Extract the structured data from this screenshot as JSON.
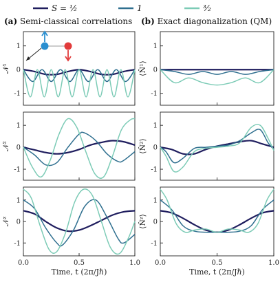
{
  "legend": {
    "items": [
      {
        "label": "S = ½",
        "color": "#1f1d5e"
      },
      {
        "label": "1",
        "color": "#2f6f8f"
      },
      {
        "label": "³⁄₂",
        "color": "#7ccbb6"
      }
    ]
  },
  "panels_titles": {
    "left": {
      "tag": "(a)",
      "text": "Semi-classical correlations"
    },
    "right": {
      "tag": "(b)",
      "text": "Exact diagonalization (QM)"
    }
  },
  "xaxis": {
    "label": "Time, t (2π/Jℏ)",
    "ticks": [
      "0.0",
      "0.5",
      "1.0"
    ]
  },
  "chart_data": [
    {
      "type": "line",
      "panel": "a1",
      "ylabel": "𝒩¹",
      "ylim": [
        -1.5,
        1.6
      ],
      "yticks": [
        -1,
        0,
        1
      ],
      "xlim": [
        0,
        1
      ],
      "series": [
        {
          "name": "S = ½",
          "color": "#1f1d5e",
          "x": [
            0,
            0.1,
            0.2,
            0.3,
            0.4,
            0.5,
            0.6,
            0.7,
            0.8,
            0.9,
            1.0
          ],
          "y": [
            0,
            -0.08,
            -0.2,
            -0.2,
            -0.08,
            0,
            -0.08,
            -0.2,
            -0.2,
            -0.08,
            0
          ]
        },
        {
          "name": "1",
          "color": "#2f6f8f",
          "x": [
            0,
            0.083,
            0.167,
            0.25,
            0.333,
            0.417,
            0.5,
            0.583,
            0.667,
            0.75,
            0.833,
            0.917,
            1.0
          ],
          "y": [
            0,
            -0.5,
            0,
            -0.5,
            0,
            -0.5,
            0,
            -0.5,
            0,
            -0.5,
            0,
            -0.5,
            0
          ]
        },
        {
          "name": "³⁄₂",
          "color": "#7ccbb6",
          "x": [
            0,
            0.0625,
            0.125,
            0.1875,
            0.25,
            0.3125,
            0.375,
            0.4375,
            0.5,
            0.5625,
            0.625,
            0.6875,
            0.75,
            0.8125,
            0.875,
            0.9375,
            1.0
          ],
          "y": [
            0,
            -1.15,
            0,
            -1.15,
            0,
            -1.15,
            0,
            -1.15,
            0,
            -1.15,
            0,
            -1.15,
            0,
            -1.15,
            0,
            -1.15,
            0
          ]
        }
      ]
    },
    {
      "type": "line",
      "panel": "b1",
      "ylabel": "⟨N̂¹⟩",
      "ylim": [
        -1.5,
        1.6
      ],
      "yticks": [
        -1,
        0,
        1
      ],
      "xlim": [
        0,
        1
      ],
      "series": [
        {
          "name": "S = ½",
          "color": "#1f1d5e",
          "x": [
            0,
            1
          ],
          "y": [
            0,
            0
          ]
        },
        {
          "name": "1",
          "color": "#2f6f8f",
          "x": [
            0,
            0.125,
            0.25,
            0.375,
            0.5,
            0.625,
            0.75,
            0.875,
            1.0
          ],
          "y": [
            0,
            -0.08,
            -0.2,
            -0.08,
            -0.2,
            -0.08,
            -0.2,
            -0.08,
            0
          ]
        },
        {
          "name": "³⁄₂",
          "color": "#7ccbb6",
          "x": [
            0,
            0.125,
            0.25,
            0.375,
            0.5,
            0.625,
            0.75,
            0.875,
            1.0
          ],
          "y": [
            0,
            -0.55,
            -0.35,
            -0.55,
            -0.65,
            -0.55,
            -0.35,
            -0.55,
            0
          ]
        }
      ]
    },
    {
      "type": "line",
      "panel": "a2",
      "ylabel": "𝒩²",
      "ylim": [
        -1.5,
        1.6
      ],
      "yticks": [
        -1,
        0,
        1
      ],
      "xlim": [
        0,
        1
      ],
      "series": [
        {
          "name": "S = ½",
          "color": "#1f1d5e",
          "x": [
            0,
            0.1,
            0.2,
            0.3,
            0.4,
            0.5,
            0.6,
            0.7,
            0.8,
            0.9,
            1.0
          ],
          "y": [
            0,
            -0.12,
            -0.24,
            -0.3,
            -0.24,
            -0.1,
            0.1,
            0.22,
            0.3,
            0.25,
            0.1
          ]
        },
        {
          "name": "1",
          "color": "#2f6f8f",
          "x": [
            0,
            0.1,
            0.2,
            0.3,
            0.4,
            0.5,
            0.55,
            0.65,
            0.75,
            0.85,
            0.9,
            1.0
          ],
          "y": [
            0,
            -0.35,
            -0.8,
            -0.7,
            0.0,
            0.6,
            0.65,
            0.3,
            -0.3,
            -0.65,
            -0.6,
            -0.2
          ]
        },
        {
          "name": "³⁄₂",
          "color": "#7ccbb6",
          "x": [
            0,
            0.08,
            0.16,
            0.24,
            0.32,
            0.4,
            0.48,
            0.56,
            0.64,
            0.72,
            0.8,
            0.88,
            0.96,
            1.0
          ],
          "y": [
            0,
            -0.9,
            -1.35,
            -0.6,
            0.6,
            1.3,
            0.9,
            -0.2,
            -1.2,
            -1.35,
            -0.4,
            0.8,
            1.25,
            1.3
          ]
        }
      ]
    },
    {
      "type": "line",
      "panel": "b2",
      "ylabel": "⟨N̂²⟩",
      "ylim": [
        -1.5,
        1.6
      ],
      "yticks": [
        -1,
        0,
        1
      ],
      "xlim": [
        0,
        1
      ],
      "series": [
        {
          "name": "S = ½",
          "color": "#1f1d5e",
          "x": [
            0,
            0.1,
            0.2,
            0.3,
            0.4,
            0.5,
            0.6,
            0.7,
            0.8,
            0.9,
            1.0
          ],
          "y": [
            0,
            -0.1,
            -0.3,
            -0.3,
            -0.1,
            0.05,
            0.15,
            0.25,
            0.3,
            0.15,
            0
          ]
        },
        {
          "name": "1",
          "color": "#2f6f8f",
          "x": [
            0,
            0.05,
            0.12,
            0.2,
            0.3,
            0.4,
            0.5,
            0.6,
            0.7,
            0.8,
            0.88,
            0.95,
            1.0
          ],
          "y": [
            0,
            -0.2,
            -0.7,
            -0.5,
            -0.05,
            0.0,
            0.05,
            0.1,
            0.3,
            0.65,
            0.8,
            0.2,
            -0.1
          ]
        },
        {
          "name": "³⁄₂",
          "color": "#7ccbb6",
          "x": [
            0,
            0.05,
            0.12,
            0.2,
            0.3,
            0.4,
            0.5,
            0.6,
            0.7,
            0.8,
            0.88,
            0.95,
            1.0
          ],
          "y": [
            0,
            -0.4,
            -1.1,
            -0.9,
            -0.2,
            -0.05,
            0.0,
            0.05,
            0.2,
            0.9,
            1.0,
            0.4,
            -0.15
          ]
        }
      ]
    },
    {
      "type": "line",
      "panel": "a3",
      "ylabel": "𝒩ᶻ",
      "ylim": [
        -1.6,
        1.6
      ],
      "yticks": [
        -1,
        0,
        1
      ],
      "xlim": [
        0,
        1
      ],
      "series": [
        {
          "name": "S = ½",
          "color": "#1f1d5e",
          "x": [
            0,
            0.1,
            0.2,
            0.3,
            0.4,
            0.5,
            0.6,
            0.7,
            0.8,
            0.9,
            1.0
          ],
          "y": [
            0.5,
            0.35,
            0.0,
            -0.3,
            -0.45,
            -0.4,
            -0.2,
            0.05,
            0.3,
            0.45,
            0.5
          ]
        },
        {
          "name": "1",
          "color": "#2f6f8f",
          "x": [
            0,
            0.1,
            0.2,
            0.3,
            0.35,
            0.45,
            0.55,
            0.65,
            0.75,
            0.85,
            0.9,
            1.0
          ],
          "y": [
            1.0,
            0.6,
            -0.3,
            -1.0,
            -1.1,
            -0.4,
            0.7,
            1.0,
            0.2,
            -0.8,
            -1.0,
            -0.6
          ]
        },
        {
          "name": "³⁄₂",
          "color": "#7ccbb6",
          "x": [
            0,
            0.07,
            0.15,
            0.23,
            0.3,
            0.38,
            0.46,
            0.54,
            0.62,
            0.7,
            0.78,
            0.86,
            0.94,
            1.0
          ],
          "y": [
            1.5,
            1.1,
            -0.2,
            -1.3,
            -1.4,
            -0.5,
            0.9,
            1.5,
            1.2,
            0.0,
            -1.2,
            -1.5,
            -0.8,
            0.0
          ]
        }
      ]
    },
    {
      "type": "line",
      "panel": "b3",
      "ylabel": "⟨N̂ᶻ⟩",
      "ylim": [
        -1.6,
        1.6
      ],
      "yticks": [
        -1,
        0,
        1
      ],
      "xlim": [
        0,
        1
      ],
      "series": [
        {
          "name": "S = ½",
          "color": "#1f1d5e",
          "x": [
            0,
            0.1,
            0.2,
            0.3,
            0.4,
            0.5,
            0.6,
            0.7,
            0.8,
            0.9,
            1.0
          ],
          "y": [
            0.5,
            0.4,
            0.15,
            -0.15,
            -0.4,
            -0.5,
            -0.4,
            -0.15,
            0.15,
            0.4,
            0.5
          ]
        },
        {
          "name": "1",
          "color": "#2f6f8f",
          "x": [
            0,
            0.1,
            0.2,
            0.3,
            0.4,
            0.5,
            0.6,
            0.7,
            0.8,
            0.9,
            1.0
          ],
          "y": [
            1.0,
            0.55,
            -0.2,
            -0.45,
            -0.5,
            -0.5,
            -0.5,
            -0.45,
            -0.2,
            0.55,
            1.0
          ]
        },
        {
          "name": "³⁄₂",
          "color": "#7ccbb6",
          "x": [
            0,
            0.06,
            0.14,
            0.22,
            0.3,
            0.4,
            0.5,
            0.6,
            0.7,
            0.78,
            0.86,
            0.94,
            1.0
          ],
          "y": [
            1.5,
            1.0,
            -0.1,
            -0.5,
            -0.4,
            -0.35,
            -0.5,
            -0.35,
            -0.4,
            -0.5,
            -0.1,
            1.0,
            1.5
          ]
        }
      ]
    }
  ]
}
